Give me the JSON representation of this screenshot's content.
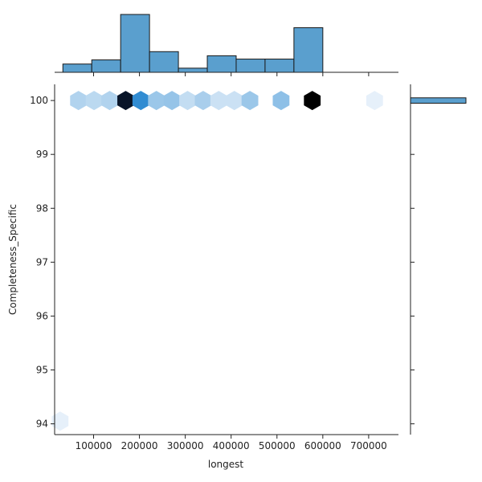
{
  "chart_data": {
    "type": "hexbin-joint",
    "xlabel": "longest",
    "ylabel": "Completeness_Specific",
    "xlim": [
      15000,
      765000
    ],
    "ylim": [
      93.8,
      100.3
    ],
    "xticks": [
      100000,
      200000,
      300000,
      400000,
      500000,
      600000,
      700000
    ],
    "xtick_labels": [
      "100000",
      "200000",
      "300000",
      "400000",
      "500000",
      "600000",
      "700000"
    ],
    "yticks": [
      94,
      95,
      96,
      97,
      98,
      99,
      100
    ],
    "ytick_labels": [
      "94",
      "95",
      "96",
      "97",
      "98",
      "99",
      "100"
    ],
    "colors": {
      "bar_fill": "#5a9fce",
      "bar_edge": "#1a1a1a",
      "axis": "#222222"
    },
    "hexbins": [
      {
        "x": 27000,
        "y": 94.05,
        "count": 0.02
      },
      {
        "x": 67000,
        "y": 100,
        "count": 0.22
      },
      {
        "x": 101000,
        "y": 100,
        "count": 0.18
      },
      {
        "x": 135000,
        "y": 100,
        "count": 0.22
      },
      {
        "x": 170000,
        "y": 100,
        "count": 0.95
      },
      {
        "x": 203000,
        "y": 100,
        "count": 0.7
      },
      {
        "x": 237000,
        "y": 100,
        "count": 0.3
      },
      {
        "x": 271000,
        "y": 100,
        "count": 0.32
      },
      {
        "x": 305000,
        "y": 100,
        "count": 0.15
      },
      {
        "x": 339000,
        "y": 100,
        "count": 0.25
      },
      {
        "x": 373000,
        "y": 100,
        "count": 0.12
      },
      {
        "x": 407000,
        "y": 100,
        "count": 0.12
      },
      {
        "x": 441000,
        "y": 100,
        "count": 0.3
      },
      {
        "x": 509000,
        "y": 100,
        "count": 0.35
      },
      {
        "x": 577000,
        "y": 100,
        "count": 1.0
      },
      {
        "x": 713000,
        "y": 100,
        "count": 0.02
      }
    ],
    "x_histogram": {
      "bin_edges": [
        33000,
        96000,
        159000,
        222000,
        285000,
        348000,
        411000,
        474000,
        537000,
        600000,
        663000,
        726000
      ],
      "counts": [
        1,
        1.5,
        7,
        2.5,
        0.5,
        2,
        1.6,
        1.6,
        5.4,
        0,
        0
      ]
    },
    "y_histogram": {
      "bin": [
        99.95,
        100.05
      ],
      "count": 1
    }
  }
}
